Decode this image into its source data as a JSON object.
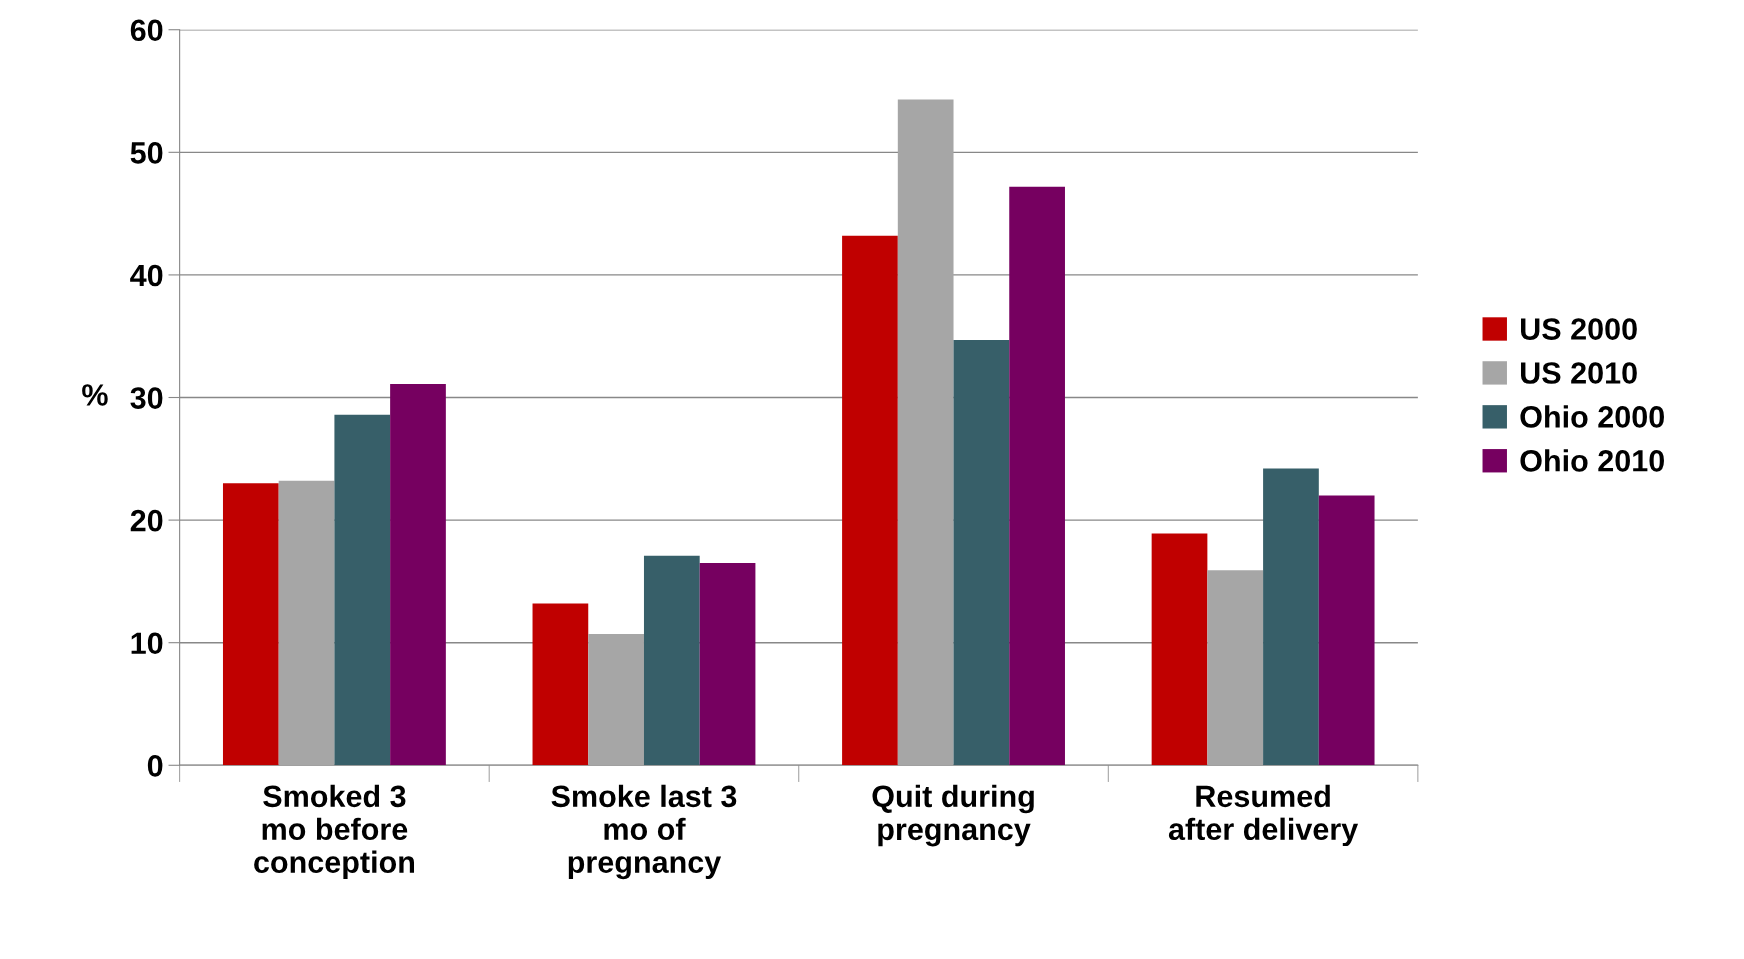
{
  "chart_data": {
    "type": "bar",
    "ylabel": "%",
    "categories": [
      "Smoked 3\nmo before\nconception",
      "Smoke last 3\nmo of\npregnancy",
      "Quit during\npregnancy",
      "Resumed\nafter delivery"
    ],
    "series": [
      {
        "name": "US 2000",
        "color": "#c00000",
        "values": [
          23.0,
          13.2,
          43.2,
          18.9
        ]
      },
      {
        "name": "US 2010",
        "color": "#a6a6a6",
        "values": [
          23.2,
          10.7,
          54.3,
          15.9
        ]
      },
      {
        "name": "Ohio 2000",
        "color": "#375f69",
        "values": [
          28.6,
          17.1,
          34.7,
          24.2
        ]
      },
      {
        "name": "Ohio 2010",
        "color": "#760060",
        "values": [
          31.1,
          16.5,
          47.2,
          22.0
        ]
      }
    ],
    "ylim": [
      0,
      60
    ],
    "yticks": [
      0,
      10,
      20,
      30,
      40,
      50,
      60
    ],
    "grid": "y",
    "legend": "right"
  }
}
